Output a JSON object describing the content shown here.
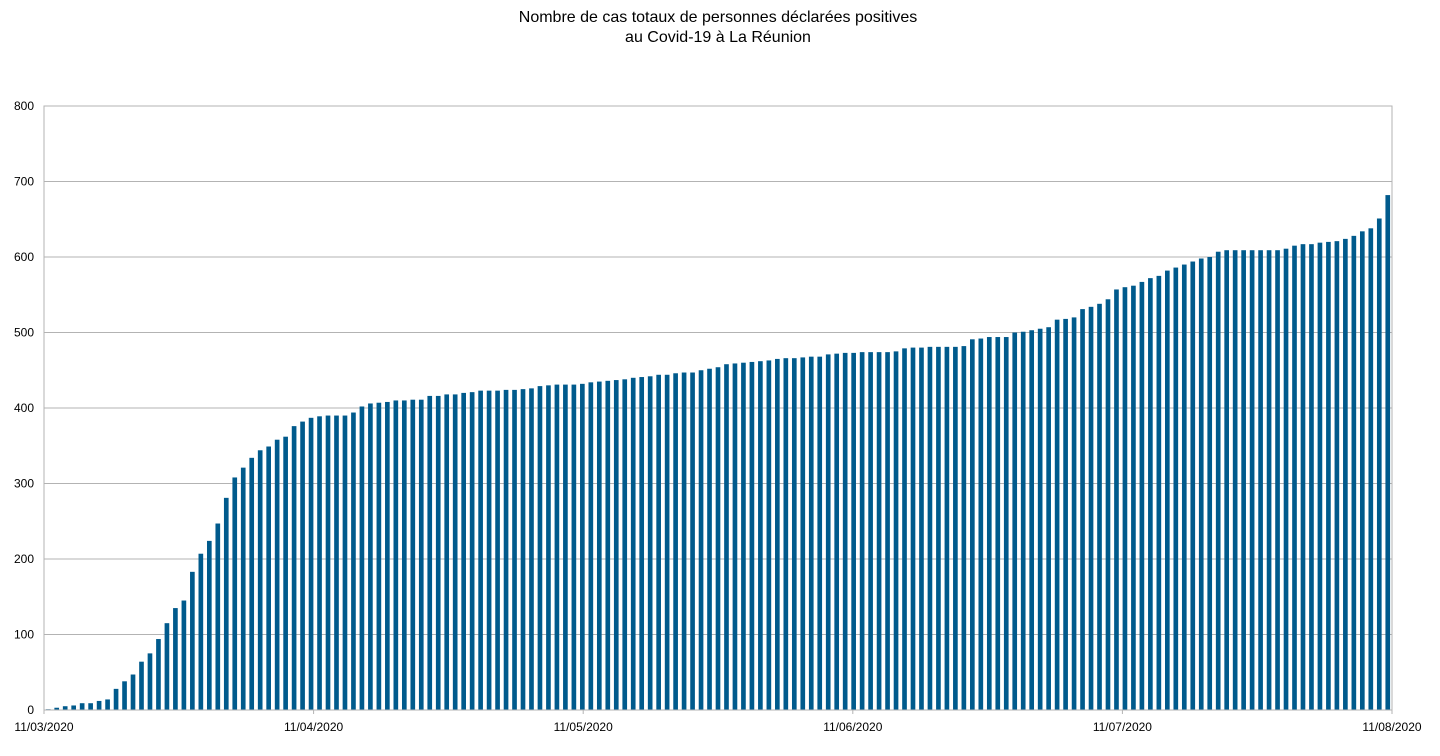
{
  "chart_data": {
    "type": "bar",
    "title_lines": [
      "Nombre de cas totaux de personnes déclarées positives",
      "au Covid-19 à La Réunion"
    ],
    "xlabel": "",
    "ylabel": "",
    "ylim": [
      0,
      800
    ],
    "y_ticks": [
      "0",
      "100",
      "200",
      "300",
      "400",
      "500",
      "600",
      "700",
      "800"
    ],
    "x_tick_labels": [
      "11/03/2020",
      "11/04/2020",
      "11/05/2020",
      "11/06/2020",
      "11/07/2020",
      "11/08/2020"
    ],
    "x_range": [
      "11/03/2020",
      "11/08/2020"
    ],
    "grid": true,
    "bar_color": "#005a8c",
    "values": [
      1,
      3,
      5,
      6,
      9,
      9,
      12,
      14,
      28,
      38,
      47,
      64,
      75,
      94,
      115,
      135,
      145,
      183,
      207,
      224,
      247,
      281,
      308,
      321,
      334,
      344,
      349,
      358,
      362,
      376,
      382,
      387,
      389,
      390,
      390,
      390,
      394,
      402,
      406,
      407,
      408,
      410,
      410,
      411,
      411,
      416,
      416,
      418,
      418,
      420,
      421,
      423,
      423,
      423,
      424,
      424,
      425,
      426,
      429,
      430,
      431,
      431,
      431,
      432,
      434,
      435,
      436,
      437,
      438,
      440,
      441,
      442,
      444,
      444,
      446,
      447,
      447,
      450,
      452,
      454,
      458,
      459,
      460,
      461,
      462,
      463,
      465,
      466,
      466,
      467,
      468,
      468,
      471,
      472,
      473,
      473,
      474,
      474,
      474,
      474,
      475,
      479,
      480,
      480,
      481,
      481,
      481,
      481,
      482,
      491,
      492,
      494,
      494,
      494,
      500,
      501,
      503,
      505,
      507,
      517,
      518,
      520,
      531,
      534,
      538,
      544,
      557,
      560,
      562,
      567,
      572,
      575,
      582,
      586,
      590,
      594,
      598,
      600,
      607,
      609,
      609,
      609,
      609,
      609,
      609,
      609,
      611,
      615,
      617,
      617,
      619,
      620,
      621,
      624,
      628,
      634,
      638,
      651,
      682
    ]
  }
}
